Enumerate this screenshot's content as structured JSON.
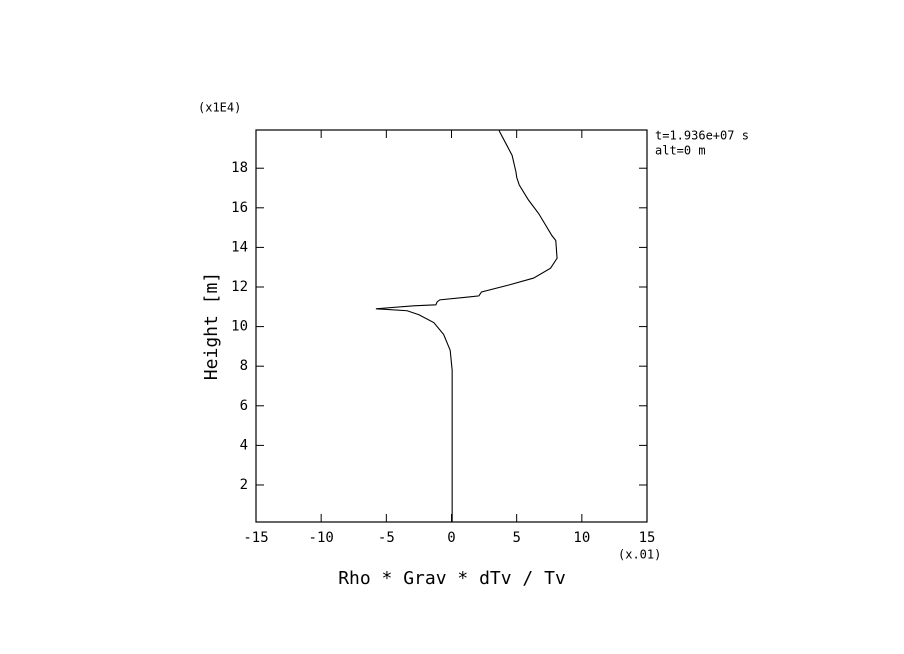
{
  "chart_data": {
    "type": "line",
    "xlabel": "Rho * Grav * dTv / Tv",
    "ylabel": "Height [m]",
    "x_multiplier": "(x.01)",
    "y_multiplier": "(x1E4)",
    "annotations": [
      "t=1.936e+07 s",
      "alt=0 m"
    ],
    "xlim": [
      -15,
      15
    ],
    "xticks": [
      -15,
      -10,
      -5,
      0,
      5,
      10,
      15
    ],
    "ylim": [
      0.13,
      19.93
    ],
    "yticks": [
      2,
      4,
      6,
      8,
      10,
      12,
      14,
      16,
      18
    ],
    "series": [
      {
        "color": "#000000",
        "x": [
          0.05,
          0.05,
          -0.1,
          -0.6,
          -1.35,
          -2.5,
          -3.4,
          -5.8,
          -2.9,
          -1.2,
          -1.1,
          -0.9,
          1.35,
          2.1,
          2.3,
          4.4,
          6.3,
          7.6,
          8.1,
          8.0,
          7.7,
          6.7,
          5.9,
          5.2,
          5.0,
          4.95,
          4.65,
          4.25,
          3.65
        ],
        "values": [
          0.13,
          7.8,
          8.8,
          9.6,
          10.2,
          10.6,
          10.8,
          10.9,
          11.05,
          11.1,
          11.25,
          11.35,
          11.5,
          11.55,
          11.75,
          12.1,
          12.45,
          12.95,
          13.45,
          14.35,
          14.6,
          15.7,
          16.4,
          17.15,
          17.55,
          17.8,
          18.65,
          19.15,
          19.9
        ]
      }
    ]
  }
}
